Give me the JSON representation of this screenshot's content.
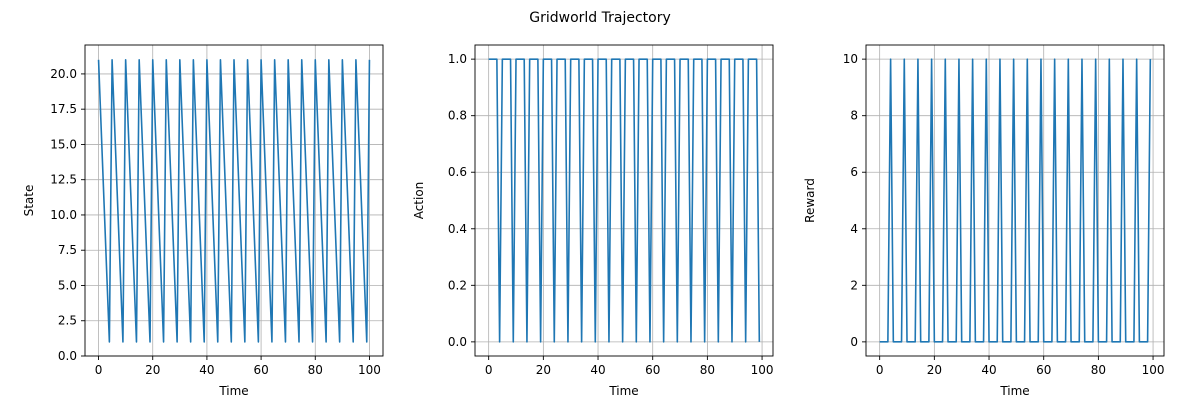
{
  "figure": {
    "title": "Gridworld Trajectory"
  },
  "colors": {
    "line": "#1f77b4",
    "grid": "#b0b0b0",
    "axis": "#000000"
  },
  "chart_data": [
    {
      "type": "line",
      "xlabel": "Time",
      "ylabel": "State",
      "xlim": [
        -5,
        105
      ],
      "ylim": [
        0,
        22.05
      ],
      "xticks": [
        0,
        20,
        40,
        60,
        80,
        100
      ],
      "yticks": [
        0.0,
        2.5,
        5.0,
        7.5,
        10.0,
        12.5,
        15.0,
        17.5,
        20.0
      ],
      "ytick_decimals": 1,
      "grid": true,
      "pattern": "Each 5-step cycle: state 21 falls linearly to 1 at the 4th step, then jumps back to 21 on the next step; sequence starts at 21 (t=0) and ends at 21 (t=100).",
      "series": [
        {
          "x": [
            0,
            4,
            5,
            9,
            10,
            14,
            15,
            19,
            20,
            24,
            25,
            29,
            30,
            34,
            35,
            39,
            40,
            44,
            45,
            49,
            50,
            54,
            55,
            59,
            60,
            64,
            65,
            69,
            70,
            74,
            75,
            79,
            80,
            84,
            85,
            89,
            90,
            94,
            95,
            99,
            100
          ],
          "y": [
            21,
            1,
            21,
            1,
            21,
            1,
            21,
            1,
            21,
            1,
            21,
            1,
            21,
            1,
            21,
            1,
            21,
            1,
            21,
            1,
            21,
            1,
            21,
            1,
            21,
            1,
            21,
            1,
            21,
            1,
            21,
            1,
            21,
            1,
            21,
            1,
            21,
            1,
            21,
            1,
            21
          ]
        }
      ]
    },
    {
      "type": "line",
      "xlabel": "Time",
      "ylabel": "Action",
      "xlim": [
        -5,
        104
      ],
      "ylim": [
        -0.05,
        1.05
      ],
      "xticks": [
        0,
        20,
        40,
        60,
        80,
        100
      ],
      "yticks": [
        0.0,
        0.2,
        0.4,
        0.6,
        0.8,
        1.0
      ],
      "ytick_decimals": 1,
      "grid": true,
      "series": [
        {
          "x": [
            0,
            3,
            4,
            5,
            8,
            9,
            10,
            13,
            14,
            15,
            18,
            19,
            20,
            23,
            24,
            25,
            28,
            29,
            30,
            33,
            34,
            35,
            38,
            39,
            40,
            43,
            44,
            45,
            48,
            49,
            50,
            53,
            54,
            55,
            58,
            59,
            60,
            63,
            64,
            65,
            68,
            69,
            70,
            73,
            74,
            75,
            78,
            79,
            80,
            83,
            84,
            85,
            88,
            89,
            90,
            93,
            94,
            95,
            98,
            99
          ],
          "y": [
            1,
            1,
            0,
            1,
            1,
            0,
            1,
            1,
            0,
            1,
            1,
            0,
            1,
            1,
            0,
            1,
            1,
            0,
            1,
            1,
            0,
            1,
            1,
            0,
            1,
            1,
            0,
            1,
            1,
            0,
            1,
            1,
            0,
            1,
            1,
            0,
            1,
            1,
            0,
            1,
            1,
            0,
            1,
            1,
            0,
            1,
            1,
            0,
            1,
            1,
            0,
            1,
            1,
            0,
            1,
            1,
            0,
            1,
            1,
            0
          ]
        }
      ]
    },
    {
      "type": "line",
      "xlabel": "Time",
      "ylabel": "Reward",
      "xlim": [
        -5,
        104
      ],
      "ylim": [
        -0.5,
        10.5
      ],
      "xticks": [
        0,
        20,
        40,
        60,
        80,
        100
      ],
      "yticks": [
        0,
        2,
        4,
        6,
        8,
        10
      ],
      "ytick_decimals": 0,
      "grid": true,
      "series": [
        {
          "x": [
            0,
            3,
            4,
            5,
            8,
            9,
            10,
            13,
            14,
            15,
            18,
            19,
            20,
            23,
            24,
            25,
            28,
            29,
            30,
            33,
            34,
            35,
            38,
            39,
            40,
            43,
            44,
            45,
            48,
            49,
            50,
            53,
            54,
            55,
            58,
            59,
            60,
            63,
            64,
            65,
            68,
            69,
            70,
            73,
            74,
            75,
            78,
            79,
            80,
            83,
            84,
            85,
            88,
            89,
            90,
            93,
            94,
            95,
            98,
            99
          ],
          "y": [
            0,
            0,
            10,
            0,
            0,
            10,
            0,
            0,
            10,
            0,
            0,
            10,
            0,
            0,
            10,
            0,
            0,
            10,
            0,
            0,
            10,
            0,
            0,
            10,
            0,
            0,
            10,
            0,
            0,
            10,
            0,
            0,
            10,
            0,
            0,
            10,
            0,
            0,
            10,
            0,
            0,
            10,
            0,
            0,
            10,
            0,
            0,
            10,
            0,
            0,
            10,
            0,
            0,
            10,
            0,
            0,
            10,
            0,
            0,
            10
          ]
        }
      ]
    }
  ]
}
